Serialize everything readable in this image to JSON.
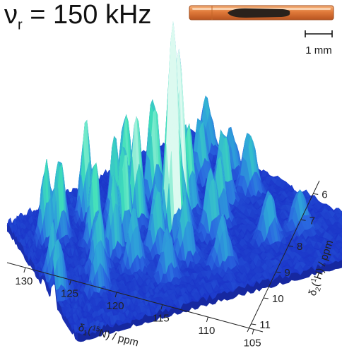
{
  "title": {
    "symbol": "ν",
    "subscript": "r",
    "text": "= 150 kHz"
  },
  "inset": {
    "name": "rotor-photo",
    "scale_label": "1 mm"
  },
  "chart_data": {
    "type": "surface",
    "x_axis": {
      "label_prefix": "δ",
      "label_sub": "1",
      "label_nucleus_mass": "15",
      "label_nucleus": "N",
      "label_unit": ") / ppm",
      "range": [
        132,
        104
      ],
      "ticks": [
        130,
        125,
        120,
        115,
        110,
        105
      ],
      "tick_labels": [
        "130",
        "125",
        "120",
        "115",
        "110",
        "105"
      ]
    },
    "y_axis": {
      "label_prefix": "δ",
      "label_sub": "2",
      "label_nucleus_mass": "1",
      "label_nucleus": "H",
      "label_unit": ") / ppm",
      "range": [
        5.5,
        11.3
      ],
      "ticks": [
        6,
        7,
        8,
        9,
        10,
        11
      ],
      "tick_labels": [
        "6",
        "7",
        "8",
        "9",
        "10",
        "11"
      ]
    },
    "z_axis": {
      "shown": false
    },
    "colormap": [
      "#1b34c8",
      "#2a68e0",
      "#2fa8d8",
      "#3fe0b8",
      "#dcfaf0"
    ],
    "grid": false,
    "legend": "none",
    "peaks": [
      {
        "x": 117.8,
        "y": 8.5,
        "z": 1.0
      },
      {
        "x": 116.5,
        "y": 8.3,
        "z": 0.82
      },
      {
        "x": 123.2,
        "y": 6.6,
        "z": 0.45
      },
      {
        "x": 129.0,
        "y": 6.8,
        "z": 0.38
      },
      {
        "x": 127.5,
        "y": 7.0,
        "z": 0.4
      },
      {
        "x": 131.0,
        "y": 8.5,
        "z": 0.25
      },
      {
        "x": 131.5,
        "y": 9.3,
        "z": 0.26
      },
      {
        "x": 125.0,
        "y": 7.8,
        "z": 0.42
      },
      {
        "x": 124.0,
        "y": 8.4,
        "z": 0.36
      },
      {
        "x": 122.0,
        "y": 8.0,
        "z": 0.48
      },
      {
        "x": 121.0,
        "y": 7.2,
        "z": 0.4
      },
      {
        "x": 120.5,
        "y": 8.9,
        "z": 0.33
      },
      {
        "x": 119.5,
        "y": 7.6,
        "z": 0.52
      },
      {
        "x": 119.0,
        "y": 9.5,
        "z": 0.3
      },
      {
        "x": 118.5,
        "y": 6.8,
        "z": 0.46
      },
      {
        "x": 115.5,
        "y": 7.0,
        "z": 0.5
      },
      {
        "x": 115.0,
        "y": 9.0,
        "z": 0.32
      },
      {
        "x": 114.0,
        "y": 7.8,
        "z": 0.42
      },
      {
        "x": 113.0,
        "y": 8.6,
        "z": 0.3
      },
      {
        "x": 112.5,
        "y": 7.3,
        "z": 0.34
      },
      {
        "x": 111.5,
        "y": 9.8,
        "z": 0.24
      },
      {
        "x": 110.5,
        "y": 8.0,
        "z": 0.36
      },
      {
        "x": 109.5,
        "y": 7.0,
        "z": 0.3
      },
      {
        "x": 107.5,
        "y": 8.0,
        "z": 0.3
      },
      {
        "x": 106.5,
        "y": 7.2,
        "z": 0.22
      },
      {
        "x": 105.5,
        "y": 6.3,
        "z": 0.26
      },
      {
        "x": 108.5,
        "y": 9.8,
        "z": 0.2
      },
      {
        "x": 123.5,
        "y": 9.2,
        "z": 0.28
      },
      {
        "x": 126.5,
        "y": 8.8,
        "z": 0.3
      },
      {
        "x": 127.8,
        "y": 9.6,
        "z": 0.24
      },
      {
        "x": 121.8,
        "y": 10.0,
        "z": 0.22
      },
      {
        "x": 117.0,
        "y": 10.2,
        "z": 0.24
      }
    ]
  }
}
